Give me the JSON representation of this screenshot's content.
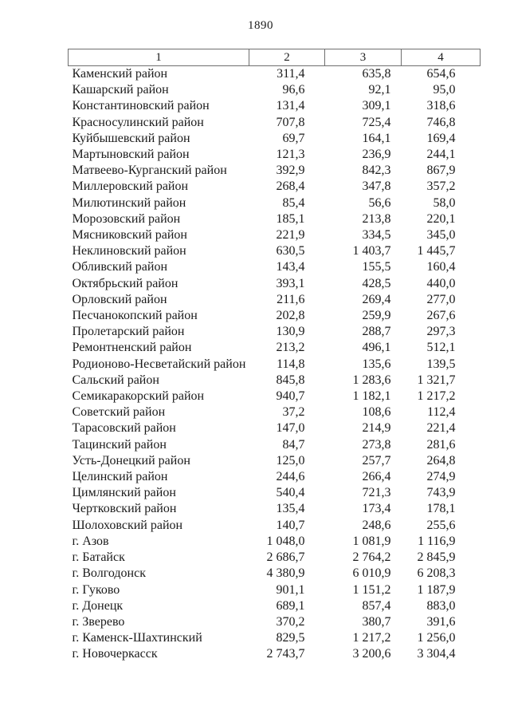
{
  "page": {
    "number": "1890"
  },
  "table": {
    "header": [
      "1",
      "2",
      "3",
      "4"
    ],
    "rows": [
      [
        "Каменский район",
        "311,4",
        "635,8",
        "654,6"
      ],
      [
        "Кашарский район",
        "96,6",
        "92,1",
        "95,0"
      ],
      [
        "Константиновский район",
        "131,4",
        "309,1",
        "318,6"
      ],
      [
        "Красносулинский район",
        "707,8",
        "725,4",
        "746,8"
      ],
      [
        "Куйбышевский район",
        "69,7",
        "164,1",
        "169,4"
      ],
      [
        "Мартыновский район",
        "121,3",
        "236,9",
        "244,1"
      ],
      [
        "Матвеево-Курганский район",
        "392,9",
        "842,3",
        "867,9"
      ],
      [
        "Миллеровский район",
        "268,4",
        "347,8",
        "357,2"
      ],
      [
        "Милютинский район",
        "85,4",
        "56,6",
        "58,0"
      ],
      [
        "Морозовский район",
        "185,1",
        "213,8",
        "220,1"
      ],
      [
        "Мясниковский район",
        "221,9",
        "334,5",
        "345,0"
      ],
      [
        "Неклиновский район",
        "630,5",
        "1 403,7",
        "1 445,7"
      ],
      [
        "Обливский район",
        "143,4",
        "155,5",
        "160,4"
      ],
      [
        "Октябрьский район",
        "393,1",
        "428,5",
        "440,0"
      ],
      [
        "Орловский район",
        "211,6",
        "269,4",
        "277,0"
      ],
      [
        "Песчанокопский район",
        "202,8",
        "259,9",
        "267,6"
      ],
      [
        "Пролетарский район",
        "130,9",
        "288,7",
        "297,3"
      ],
      [
        "Ремонтненский район",
        "213,2",
        "496,1",
        "512,1"
      ],
      [
        "Родионово-Несветайский район",
        "114,8",
        "135,6",
        "139,5"
      ],
      [
        "Сальский район",
        "845,8",
        "1 283,6",
        "1 321,7"
      ],
      [
        "Семикаракорский район",
        "940,7",
        "1 182,1",
        "1 217,2"
      ],
      [
        "Советский район",
        "37,2",
        "108,6",
        "112,4"
      ],
      [
        "Тарасовский район",
        "147,0",
        "214,9",
        "221,4"
      ],
      [
        "Тацинский район",
        "84,7",
        "273,8",
        "281,6"
      ],
      [
        "Усть-Донецкий район",
        "125,0",
        "257,7",
        "264,8"
      ],
      [
        "Целинский район",
        "244,6",
        "266,4",
        "274,9"
      ],
      [
        "Цимлянский район",
        "540,4",
        "721,3",
        "743,9"
      ],
      [
        "Чертковский район",
        "135,4",
        "173,4",
        "178,1"
      ],
      [
        "Шолоховский район",
        "140,7",
        "248,6",
        "255,6"
      ],
      [
        "г. Азов",
        "1 048,0",
        "1 081,9",
        "1 116,9"
      ],
      [
        "г. Батайск",
        "2 686,7",
        "2 764,2",
        "2 845,9"
      ],
      [
        "г. Волгодонск",
        "4 380,9",
        "6 010,9",
        "6 208,3"
      ],
      [
        "г. Гуково",
        "901,1",
        "1 151,2",
        "1 187,9"
      ],
      [
        "г. Донецк",
        "689,1",
        "857,4",
        "883,0"
      ],
      [
        "г. Зверево",
        "370,2",
        "380,7",
        "391,6"
      ],
      [
        "г. Каменск-Шахтинский",
        "829,5",
        "1 217,2",
        "1 256,0"
      ],
      [
        "г. Новочеркасск",
        "2 743,7",
        "3 200,6",
        "3 304,4"
      ]
    ]
  }
}
